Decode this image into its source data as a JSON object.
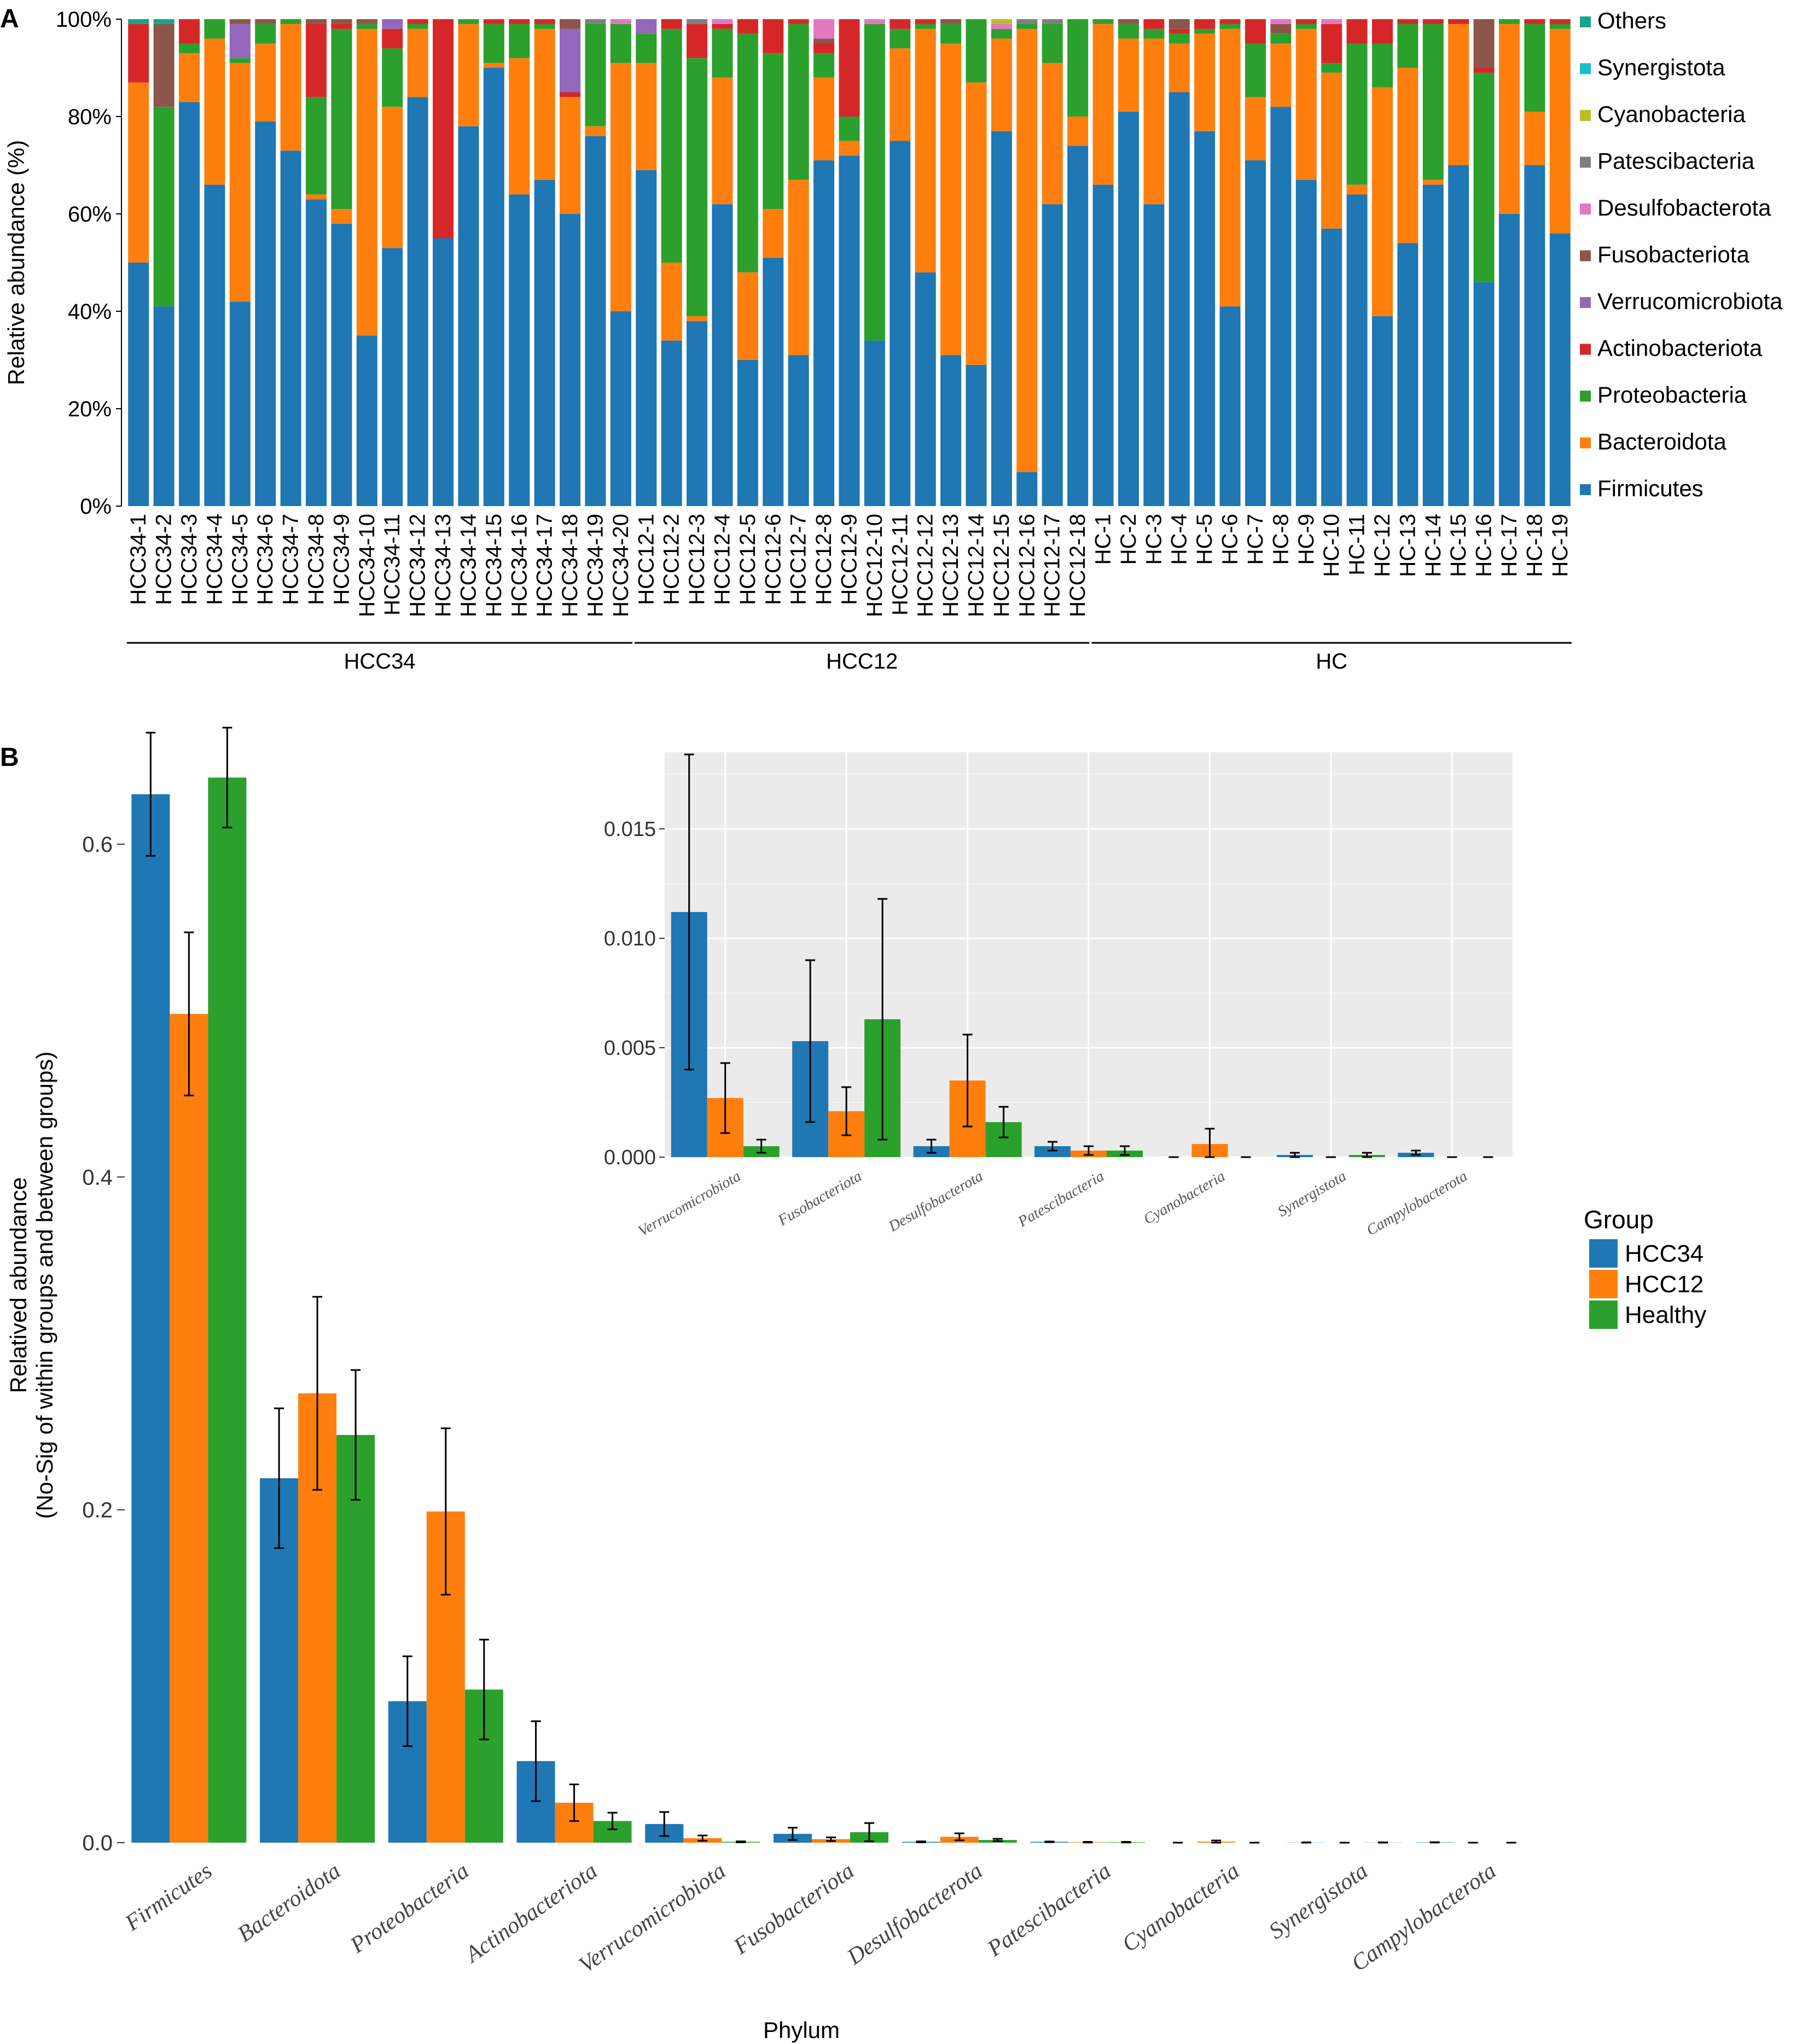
{
  "colors": {
    "Firmicutes": "#1f77b4",
    "Bacteroidota": "#ff7f0e",
    "Proteobacteria": "#2ca02c",
    "Actinobacteriota": "#d62728",
    "Verrucomicrobiota": "#9467bd",
    "Fusobacteriota": "#8c564b",
    "Desulfobacterota": "#e377c2",
    "Patescibacteria": "#7f7f7f",
    "Cyanobacteria": "#bcbd22",
    "Synergistota": "#17becf",
    "Others": "#17a589",
    "Campylobacterota": "#7f7f7f"
  },
  "chart_data": [
    {
      "panel": "A",
      "type": "bar",
      "stacked": true,
      "ylabel": "Relative abundance (%)",
      "yticks": [
        "0%",
        "20%",
        "40%",
        "60%",
        "80%",
        "100%"
      ],
      "ylim": [
        0,
        100
      ],
      "legend_placement": "right",
      "legend": [
        "Others",
        "Synergistota",
        "Cyanobacteria",
        "Patescibacteria",
        "Desulfobacterota",
        "Fusobacteriota",
        "Verrucomicrobiota",
        "Actinobacteriota",
        "Proteobacteria",
        "Bacteroidota",
        "Firmicutes"
      ],
      "stack_order": [
        "Firmicutes",
        "Bacteroidota",
        "Proteobacteria",
        "Actinobacteriota",
        "Verrucomicrobiota",
        "Fusobacteriota",
        "Desulfobacterota",
        "Patescibacteria",
        "Cyanobacteria",
        "Synergistota",
        "Others"
      ],
      "groups": [
        {
          "label": "HCC34",
          "samples": [
            "HCC34-1",
            "HCC34-2",
            "HCC34-3",
            "HCC34-4",
            "HCC34-5",
            "HCC34-6",
            "HCC34-7",
            "HCC34-8",
            "HCC34-9",
            "HCC34-10",
            "HCC34-11",
            "HCC34-12",
            "HCC34-13",
            "HCC34-14",
            "HCC34-15",
            "HCC34-16",
            "HCC34-17",
            "HCC34-18",
            "HCC34-19",
            "HCC34-20"
          ]
        },
        {
          "label": "HCC12",
          "samples": [
            "HCC12-1",
            "HCC12-2",
            "HCC12-3",
            "HCC12-4",
            "HCC12-5",
            "HCC12-6",
            "HCC12-7",
            "HCC12-8",
            "HCC12-9",
            "HCC12-10",
            "HCC12-11",
            "HCC12-12",
            "HCC12-13",
            "HCC12-14",
            "HCC12-15",
            "HCC12-16",
            "HCC12-17",
            "HCC12-18"
          ]
        },
        {
          "label": "HC",
          "samples": [
            "HC-1",
            "HC-2",
            "HC-3",
            "HC-4",
            "HC-5",
            "HC-6",
            "HC-7",
            "HC-8",
            "HC-9",
            "HC-10",
            "HC-11",
            "HC-12",
            "HC-13",
            "HC-14",
            "HC-15",
            "HC-16",
            "HC-17",
            "HC-18",
            "HC-19"
          ]
        }
      ],
      "values": [
        [
          50,
          37,
          0,
          12,
          0,
          0,
          0,
          0,
          0,
          0,
          1
        ],
        [
          41,
          0,
          41,
          0,
          0,
          17,
          0,
          0,
          0,
          0,
          1
        ],
        [
          83,
          10,
          2,
          5,
          0,
          0,
          0,
          0,
          0,
          0,
          0
        ],
        [
          66,
          30,
          4,
          0,
          0,
          0,
          0,
          0,
          0,
          0,
          0
        ],
        [
          42,
          49,
          1,
          0,
          7,
          1,
          0,
          0,
          0,
          0,
          0
        ],
        [
          79,
          16,
          4,
          0,
          0,
          1,
          0,
          0,
          0,
          0,
          0
        ],
        [
          73,
          26,
          1,
          0,
          0,
          0,
          0,
          0,
          0,
          0,
          0
        ],
        [
          63,
          1,
          20,
          15,
          0,
          1,
          0,
          0,
          0,
          0,
          0
        ],
        [
          58,
          3,
          37,
          1,
          0,
          1,
          0,
          0,
          0,
          0,
          0
        ],
        [
          35,
          63,
          1,
          0,
          0,
          1,
          0,
          0,
          0,
          0,
          0
        ],
        [
          53,
          29,
          12,
          4,
          2,
          0,
          0,
          0,
          0,
          0,
          0
        ],
        [
          84,
          14,
          1,
          1,
          0,
          0,
          0,
          0,
          0,
          0,
          0
        ],
        [
          55,
          0,
          0,
          45,
          0,
          0,
          0,
          0,
          0,
          0,
          0
        ],
        [
          78,
          21,
          1,
          0,
          0,
          0,
          0,
          0,
          0,
          0,
          0
        ],
        [
          90,
          1,
          8,
          1,
          0,
          0,
          0,
          0,
          0,
          0,
          0
        ],
        [
          64,
          28,
          7,
          1,
          0,
          0,
          0,
          0,
          0,
          0,
          0
        ],
        [
          67,
          31,
          1,
          1,
          0,
          0,
          0,
          0,
          0,
          0,
          0
        ],
        [
          60,
          24,
          0,
          1,
          13,
          2,
          0,
          0,
          0,
          0,
          0
        ],
        [
          76,
          2,
          21,
          0,
          0,
          0,
          0,
          1,
          0,
          0,
          0
        ],
        [
          40,
          51,
          8,
          0,
          0,
          0,
          1,
          0,
          0,
          0,
          0
        ],
        [
          69,
          22,
          6,
          0,
          3,
          0,
          0,
          0,
          0,
          0,
          0
        ],
        [
          34,
          16,
          48,
          2,
          0,
          0,
          0,
          0,
          0,
          0,
          0
        ],
        [
          38,
          1,
          53,
          7,
          0,
          0,
          0,
          1,
          0,
          0,
          0
        ],
        [
          62,
          26,
          10,
          1,
          0,
          0,
          1,
          0,
          0,
          0,
          0
        ],
        [
          30,
          18,
          49,
          3,
          0,
          0,
          0,
          0,
          0,
          0,
          0
        ],
        [
          51,
          10,
          32,
          7,
          0,
          0,
          0,
          0,
          0,
          0,
          0
        ],
        [
          31,
          36,
          32,
          1,
          0,
          0,
          0,
          0,
          0,
          0,
          0
        ],
        [
          71,
          17,
          5,
          2,
          0,
          1,
          4,
          0,
          0,
          0,
          0
        ],
        [
          72,
          3,
          5,
          20,
          0,
          0,
          0,
          0,
          0,
          0,
          0
        ],
        [
          34,
          0,
          65,
          0,
          0,
          0,
          1,
          0,
          0,
          0,
          0
        ],
        [
          75,
          19,
          4,
          2,
          0,
          0,
          0,
          0,
          0,
          0,
          0
        ],
        [
          48,
          50,
          1,
          1,
          0,
          0,
          0,
          0,
          0,
          0,
          0
        ],
        [
          31,
          64,
          4,
          0,
          0,
          1,
          0,
          0,
          0,
          0,
          0
        ],
        [
          29,
          58,
          13,
          0,
          0,
          0,
          0,
          0,
          0,
          0,
          0
        ],
        [
          77,
          19,
          2,
          0,
          0,
          0,
          1,
          0,
          1,
          0,
          0
        ],
        [
          7,
          91,
          1,
          0,
          0,
          0,
          0,
          1,
          0,
          0,
          0
        ],
        [
          62,
          29,
          8,
          0,
          0,
          0,
          0,
          1,
          0,
          0,
          0
        ],
        [
          74,
          6,
          20,
          0,
          0,
          0,
          0,
          0,
          0,
          0,
          0
        ],
        [
          66,
          33,
          1,
          0,
          0,
          0,
          0,
          0,
          0,
          0,
          0
        ],
        [
          81,
          15,
          3,
          0,
          0,
          1,
          0,
          0,
          0,
          0,
          0
        ],
        [
          62,
          34,
          2,
          2,
          0,
          0,
          0,
          0,
          0,
          0,
          0
        ],
        [
          85,
          10,
          2,
          1,
          0,
          2,
          0,
          0,
          0,
          0,
          0
        ],
        [
          77,
          20,
          1,
          2,
          0,
          0,
          0,
          0,
          0,
          0,
          0
        ],
        [
          41,
          57,
          1,
          1,
          0,
          0,
          0,
          0,
          0,
          0,
          0
        ],
        [
          71,
          13,
          11,
          5,
          0,
          0,
          0,
          0,
          0,
          0,
          0
        ],
        [
          82,
          13,
          2,
          0,
          0,
          2,
          1,
          0,
          0,
          0,
          0
        ],
        [
          67,
          31,
          1,
          1,
          0,
          0,
          0,
          0,
          0,
          0,
          0
        ],
        [
          57,
          32,
          2,
          8,
          0,
          0,
          1,
          0,
          0,
          0,
          0
        ],
        [
          64,
          2,
          29,
          5,
          0,
          0,
          0,
          0,
          0,
          0,
          0
        ],
        [
          39,
          47,
          9,
          5,
          0,
          0,
          0,
          0,
          0,
          0,
          0
        ],
        [
          54,
          36,
          9,
          1,
          0,
          0,
          0,
          0,
          0,
          0,
          0
        ],
        [
          66,
          1,
          32,
          1,
          0,
          0,
          0,
          0,
          0,
          0,
          0
        ],
        [
          70,
          29,
          0,
          1,
          0,
          0,
          0,
          0,
          0,
          0,
          0
        ],
        [
          46,
          0,
          43,
          1,
          0,
          10,
          0,
          0,
          0,
          0,
          0
        ],
        [
          60,
          39,
          1,
          0,
          0,
          0,
          0,
          0,
          0,
          0,
          0
        ],
        [
          70,
          11,
          18,
          1,
          0,
          0,
          0,
          0,
          0,
          0,
          0
        ],
        [
          56,
          42,
          1,
          1,
          0,
          0,
          0,
          0,
          0,
          0,
          0
        ]
      ]
    },
    {
      "panel": "B",
      "type": "bar",
      "xlabel": "Phylum",
      "ylabel_line1": "Relatived abundance",
      "ylabel_line2": "(No-Sig of within groups and between groups)",
      "ylim": [
        0,
        0.67
      ],
      "yticks": [
        "0.0",
        "0.2",
        "0.4",
        "0.6"
      ],
      "legend_title": "Group",
      "legend_placement": "right",
      "categories": [
        "Firmicutes",
        "Bacteroidota",
        "Proteobacteria",
        "Actinobacteriota",
        "Verrucomicrobiota",
        "Fusobacteriota",
        "Desulfobacterota",
        "Patescibacteria",
        "Cyanobacteria",
        "Synergistota",
        "Campylobacterota"
      ],
      "series": [
        {
          "name": "HCC34",
          "color": "#1f77b4",
          "values": [
            0.63,
            0.219,
            0.085,
            0.049,
            0.0112,
            0.0053,
            0.0005,
            0.0005,
            0.0,
            0.0001,
            0.0002
          ],
          "err": [
            0.037,
            0.042,
            0.027,
            0.024,
            0.0072,
            0.0037,
            0.0003,
            0.0002,
            0.0,
            0.0001,
            0.0001
          ]
        },
        {
          "name": "HCC12",
          "color": "#ff7f0e",
          "values": [
            0.498,
            0.27,
            0.199,
            0.024,
            0.0027,
            0.0021,
            0.0035,
            0.0003,
            0.0006,
            0.0,
            0.0
          ],
          "err": [
            0.049,
            0.058,
            0.05,
            0.011,
            0.0016,
            0.0011,
            0.0021,
            0.0002,
            0.0007,
            0.0,
            0.0
          ]
        },
        {
          "name": "Healthy",
          "color": "#2ca02c",
          "values": [
            0.64,
            0.245,
            0.092,
            0.013,
            0.0005,
            0.0063,
            0.0016,
            0.0003,
            0.0,
            0.0001,
            0.0
          ],
          "err": [
            0.03,
            0.039,
            0.03,
            0.005,
            0.0003,
            0.0055,
            0.0007,
            0.0002,
            0.0,
            0.0001,
            0.0
          ]
        }
      ],
      "inset": {
        "type": "bar",
        "ylim": [
          0,
          0.0185
        ],
        "yticks": [
          "0.000",
          "0.005",
          "0.010",
          "0.015"
        ],
        "categories": [
          "Verrucomicrobiota",
          "Fusobacteriota",
          "Desulfobacterota",
          "Patescibacteria",
          "Cyanobacteria",
          "Synergistota",
          "Campylobacterota"
        ]
      }
    }
  ]
}
